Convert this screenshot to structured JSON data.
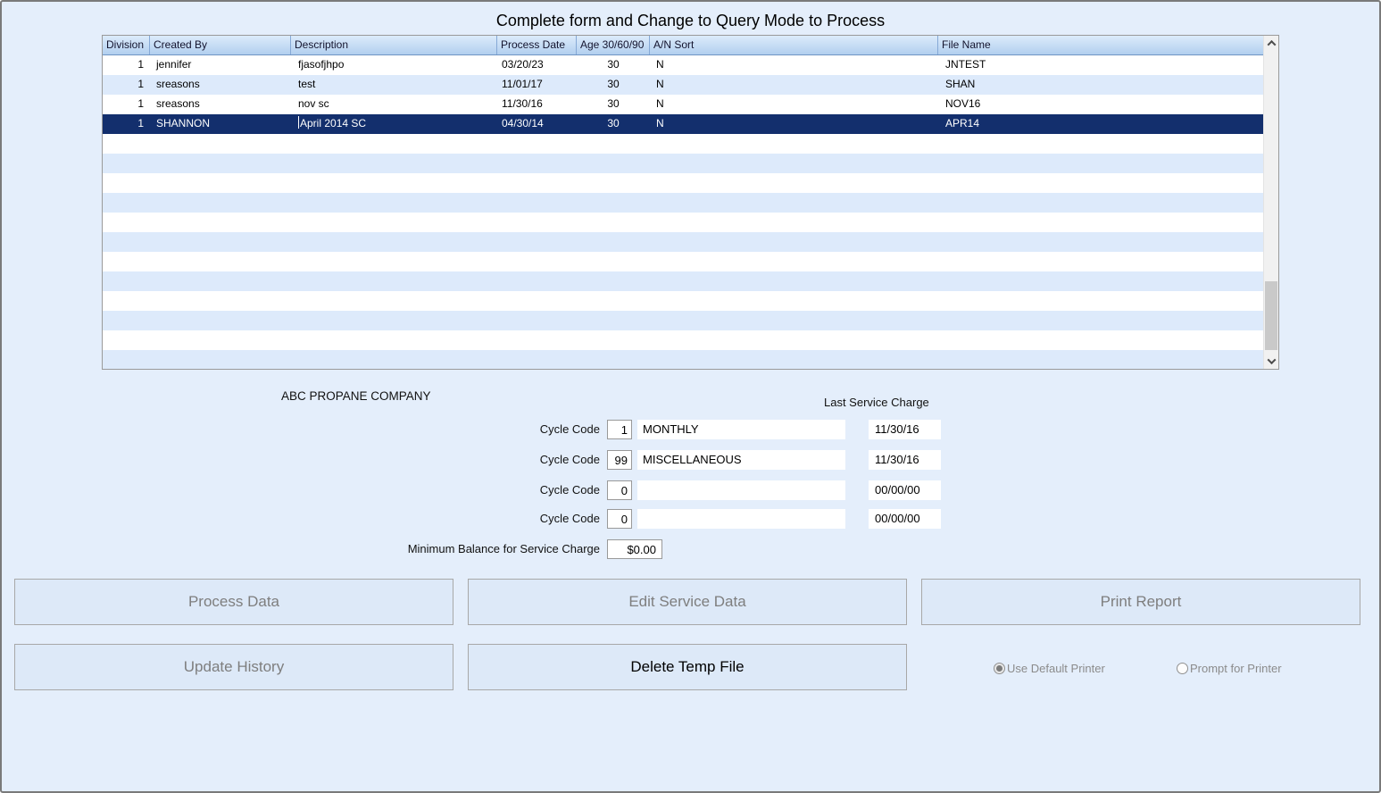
{
  "title": "Complete form and Change to Query Mode to Process",
  "table": {
    "columns": [
      "Division",
      "Created By",
      "Description",
      "Process Date",
      "Age 30/60/90",
      "A/N Sort",
      "File Name"
    ],
    "rows": [
      {
        "division": "1",
        "created_by": "jennifer",
        "description": "fjasofjhpo",
        "process_date": "03/20/23",
        "age": "30",
        "an_sort": "N",
        "file_name": "JNTEST",
        "selected": false
      },
      {
        "division": "1",
        "created_by": "sreasons",
        "description": "test",
        "process_date": "11/01/17",
        "age": "30",
        "an_sort": "N",
        "file_name": "SHAN",
        "selected": false
      },
      {
        "division": "1",
        "created_by": "sreasons",
        "description": "nov sc",
        "process_date": "11/30/16",
        "age": "30",
        "an_sort": "N",
        "file_name": "NOV16",
        "selected": false
      },
      {
        "division": "1",
        "created_by": "SHANNON",
        "description": "April 2014 SC",
        "process_date": "04/30/14",
        "age": "30",
        "an_sort": "N",
        "file_name": "APR14",
        "selected": true
      }
    ],
    "empty_row_count": 12
  },
  "form": {
    "company_name": "ABC PROPANE COMPANY",
    "last_service_charge_label": "Last Service Charge",
    "cycle_code_label": "Cycle Code",
    "cycle_rows": [
      {
        "code": "1",
        "description": "MONTHLY",
        "last_service_charge": "11/30/16"
      },
      {
        "code": "99",
        "description": "MISCELLANEOUS",
        "last_service_charge": "11/30/16"
      },
      {
        "code": "0",
        "description": "",
        "last_service_charge": "00/00/00"
      },
      {
        "code": "0",
        "description": "",
        "last_service_charge": "00/00/00"
      }
    ],
    "minimum_balance_label": "Minimum Balance for Service Charge",
    "minimum_balance_value": "$0.00"
  },
  "buttons": {
    "process_data": "Process Data",
    "edit_service_data": "Edit Service Data",
    "print_report": "Print Report",
    "update_history": "Update History",
    "delete_temp_file": "Delete Temp File"
  },
  "printer_options": {
    "use_default_label": "Use Default Printer",
    "prompt_label": "Prompt for Printer",
    "selected": "use_default"
  },
  "colors": {
    "background": "#e4eefb",
    "stripe_blue": "#ddeafb",
    "selected_row": "#132f6d",
    "header_gradient_top": "#dcebfb",
    "header_gradient_bottom": "#b2cfef"
  }
}
